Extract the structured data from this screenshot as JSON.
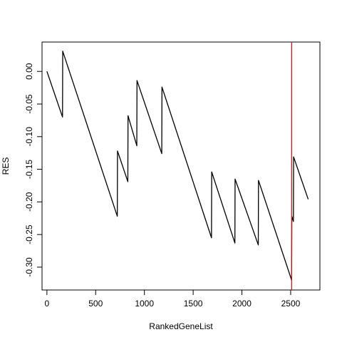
{
  "chart_data": {
    "type": "line",
    "xlabel": "RankedGeneList",
    "ylabel": "RES",
    "xlim": [
      -50,
      2800
    ],
    "ylim": [
      -0.335,
      0.045
    ],
    "x_ticks": [
      0,
      500,
      1000,
      1500,
      2000,
      2500
    ],
    "x_tick_labels": [
      "0",
      "500",
      "1000",
      "1500",
      "2000",
      "2500"
    ],
    "y_ticks": [
      0.0,
      -0.05,
      -0.1,
      -0.15,
      -0.2,
      -0.25,
      -0.3
    ],
    "y_tick_labels": [
      "0.00",
      "-0.05",
      "-0.10",
      "-0.15",
      "-0.20",
      "-0.25",
      "-0.30"
    ],
    "grid": false,
    "series": [
      {
        "color": "#000000",
        "x": [
          0,
          160,
          162,
          722,
          724,
          830,
          832,
          922,
          924,
          1178,
          1180,
          1688,
          1690,
          1928,
          1930,
          2168,
          2170,
          2510,
          2512,
          2528,
          2530,
          2680
        ],
        "y": [
          0.0,
          -0.07,
          0.031,
          -0.222,
          -0.122,
          -0.169,
          -0.068,
          -0.114,
          -0.014,
          -0.126,
          -0.024,
          -0.255,
          -0.154,
          -0.263,
          -0.165,
          -0.266,
          -0.167,
          -0.32,
          -0.222,
          -0.23,
          -0.131,
          -0.196
        ]
      }
    ],
    "vline": {
      "x": 2510,
      "color": "#b22222"
    }
  }
}
